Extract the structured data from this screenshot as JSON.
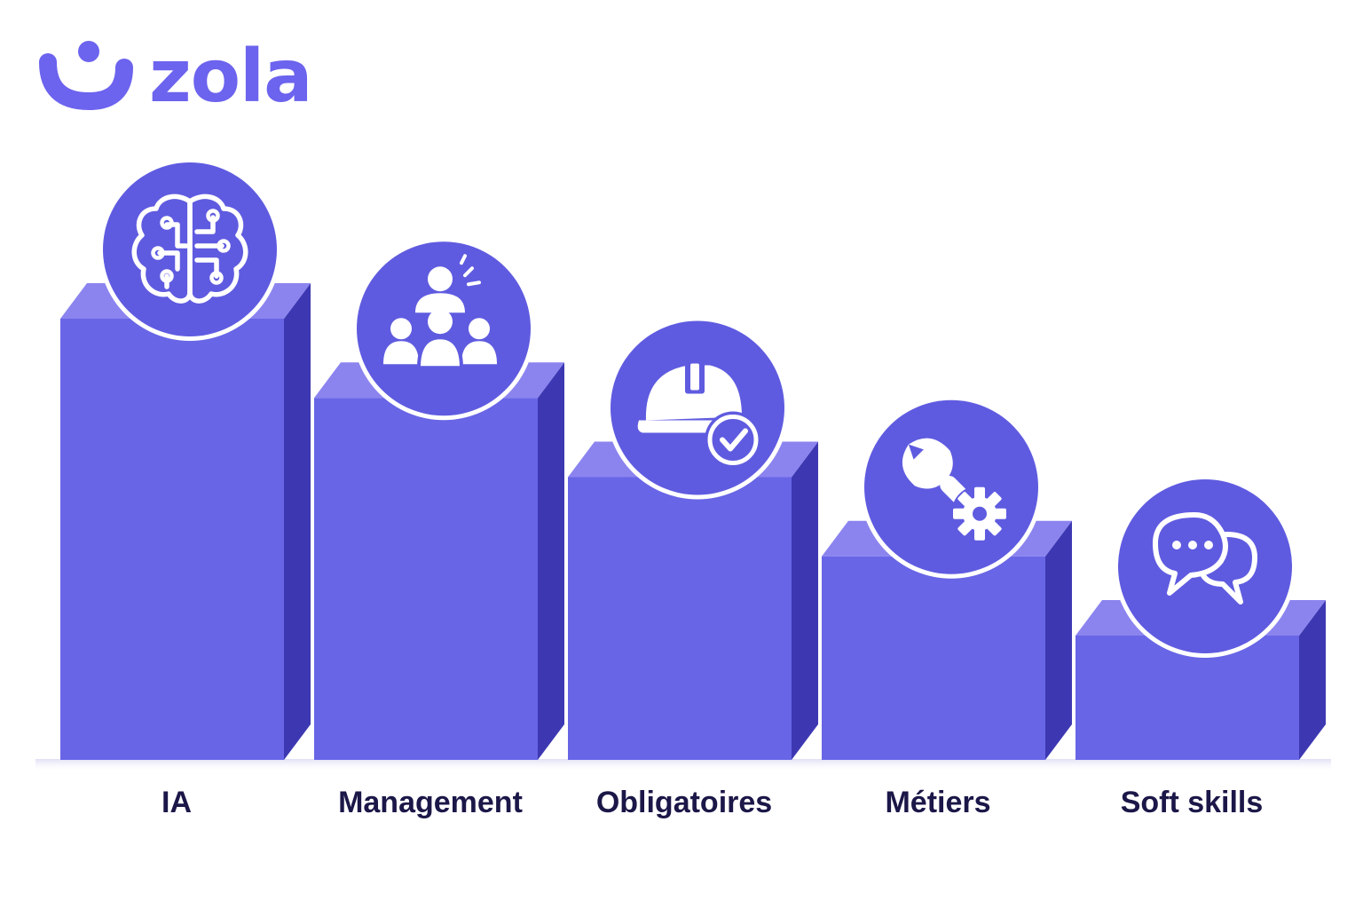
{
  "logo": {
    "text": "zola"
  },
  "colors": {
    "bar_front": "#6865e6",
    "bar_top": "#8b84ef",
    "bar_side": "#3d38b2",
    "icon_circle": "#5f5be0",
    "label": "#1b1748",
    "brand": "#6c63ee"
  },
  "chart_data": {
    "type": "bar",
    "categories": [
      "IA",
      "Management",
      "Obligatoires",
      "Métiers",
      "Soft skills"
    ],
    "values": [
      5,
      4,
      3,
      2,
      1
    ],
    "icons": [
      "brain-circuit-icon",
      "team-leader-icon",
      "safety-helmet-check-icon",
      "wrench-gear-icon",
      "chat-bubbles-icon"
    ],
    "title": "",
    "xlabel": "",
    "ylabel": "",
    "grid": false
  }
}
